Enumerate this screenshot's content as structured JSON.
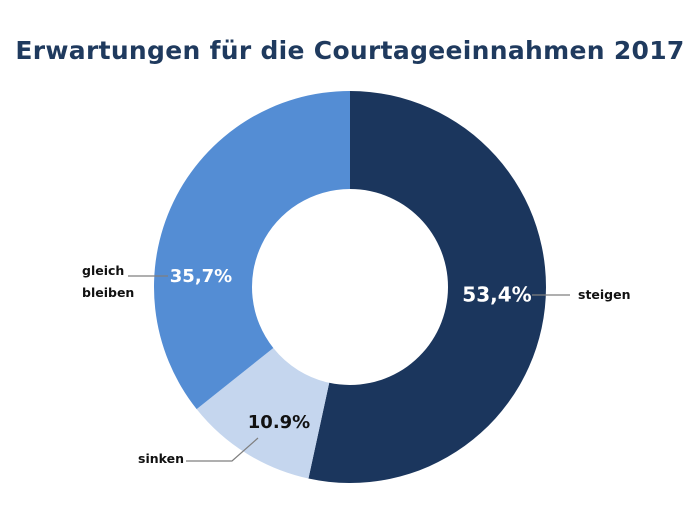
{
  "title": "Erwartungen für die Courtageeinnahmen 2017",
  "chart_data": {
    "type": "pie",
    "title": "Erwartungen für die Courtageeinnahmen 2017",
    "donut": true,
    "slices": [
      {
        "name": "steigen",
        "label_lines": [
          "steigen"
        ],
        "value": 53.4,
        "display": "53,4%",
        "color": "#1b365d",
        "text_color": "#ffffff"
      },
      {
        "name": "sinken",
        "label_lines": [
          "sinken"
        ],
        "value": 10.9,
        "display": "10.9%",
        "color": "#c5d6ee",
        "text_color": "#111111"
      },
      {
        "name": "gleich bleiben",
        "label_lines": [
          "gleich",
          "bleiben"
        ],
        "value": 35.7,
        "display": "35,7%",
        "color": "#548dd4",
        "text_color": "#ffffff"
      }
    ],
    "legend": "none",
    "grid": false
  }
}
